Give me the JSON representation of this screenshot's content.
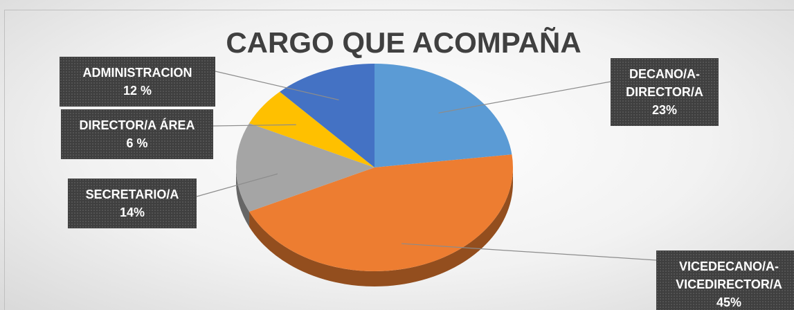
{
  "chart_data": {
    "type": "pie",
    "title": "CARGO QUE ACOMPAÑA",
    "categories": [
      "DECANO/A-DIRECTOR/A",
      "VICEDECANO/A-VICEDIRECTOR/A",
      "SECRETARIO/A",
      "DIRECTOR/A ÁREA",
      "ADMINISTRACION"
    ],
    "values": [
      23,
      45,
      14,
      6,
      12
    ],
    "value_labels": [
      "23%",
      "45%",
      "14%",
      "6 %",
      "12 %"
    ],
    "colors": [
      "#5b9bd5",
      "#ed7d31",
      "#a5a5a5",
      "#ffc000",
      "#4472c4"
    ]
  }
}
